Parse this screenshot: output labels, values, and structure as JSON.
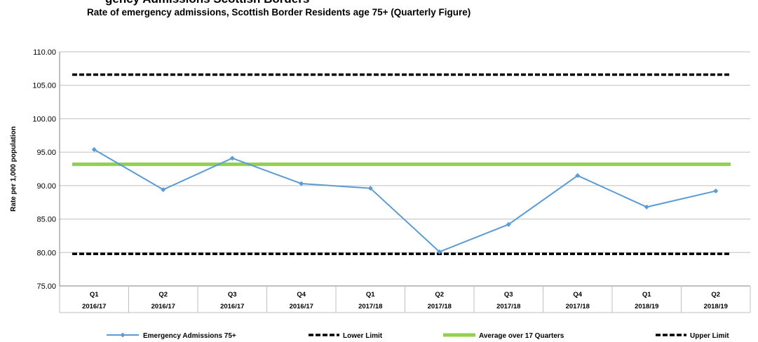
{
  "header": {
    "clipped_title": "gency Admissions Scottish Borders",
    "subtitle": "Rate of emergency admissions, Scottish Border Residents age 75+ (Quarterly Figure)"
  },
  "chart_data": {
    "type": "line",
    "title": "Rate of emergency admissions, Scottish Border Residents age 75+ (Quarterly Figure)",
    "ylabel": "Rate per 1,000 population",
    "ylim": [
      75,
      110
    ],
    "yticks": [
      "110.00",
      "105.00",
      "100.00",
      "95.00",
      "90.00",
      "85.00",
      "80.00",
      "75.00"
    ],
    "categories": [
      {
        "q": "Q1",
        "y": "2016/17"
      },
      {
        "q": "Q2",
        "y": "2016/17"
      },
      {
        "q": "Q3",
        "y": "2016/17"
      },
      {
        "q": "Q4",
        "y": "2016/17"
      },
      {
        "q": "Q1",
        "y": "2017/18"
      },
      {
        "q": "Q2",
        "y": "2017/18"
      },
      {
        "q": "Q3",
        "y": "2017/18"
      },
      {
        "q": "Q4",
        "y": "2017/18"
      },
      {
        "q": "Q1",
        "y": "2018/19"
      },
      {
        "q": "Q2",
        "y": "2018/19"
      }
    ],
    "series": [
      {
        "name": "Emergency Admissions 75+",
        "color": "#5b9bd5",
        "style": "line-diamond",
        "values": [
          95.4,
          89.4,
          94.1,
          90.3,
          89.6,
          80.1,
          84.2,
          91.5,
          86.8,
          89.2
        ]
      },
      {
        "name": "Lower Limit",
        "color": "#000000",
        "style": "dashed",
        "value": 79.8
      },
      {
        "name": "Average over 17 Quarters",
        "color": "#92d050",
        "style": "solid-thick",
        "value": 93.2
      },
      {
        "name": "Upper Limit",
        "color": "#000000",
        "style": "dashed",
        "value": 106.6
      }
    ],
    "grid": true,
    "legend_position": "bottom"
  }
}
